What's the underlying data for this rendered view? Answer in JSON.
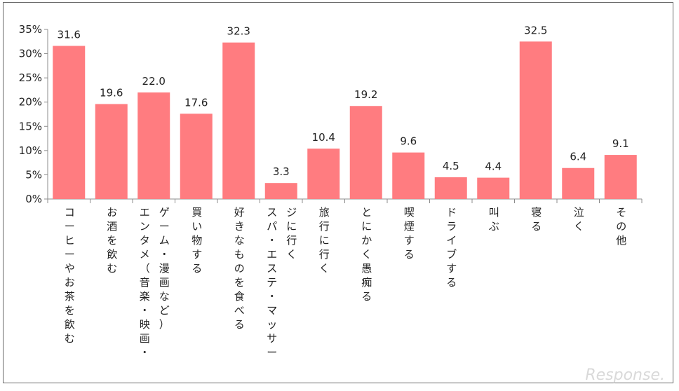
{
  "chart_data": {
    "type": "bar",
    "categories": [
      "コーヒーやお茶を飲む",
      "お酒を飲む",
      "エンタメ（音楽・映画・ゲーム・漫画など）",
      "買い物する",
      "好きなものを食べる",
      "スパ・エステ・マッサージに行く",
      "旅行に行く",
      "とにかく愚痴る",
      "喫煙する",
      "ドライブする",
      "叫ぶ",
      "寝る",
      "泣く",
      "その他"
    ],
    "category_lines": [
      [
        "コーヒーやお茶を飲む"
      ],
      [
        "お酒を飲む"
      ],
      [
        "エンタメ（音楽・映画・",
        "ゲーム・漫画など）"
      ],
      [
        "買い物する"
      ],
      [
        "好きなものを食べる"
      ],
      [
        "スパ・エステ・マッサー",
        "ジに行く"
      ],
      [
        "旅行に行く"
      ],
      [
        "とにかく愚痴る"
      ],
      [
        "喫煙する"
      ],
      [
        "ドライブする"
      ],
      [
        "叫ぶ"
      ],
      [
        "寝る"
      ],
      [
        "泣く"
      ],
      [
        "その他"
      ]
    ],
    "values": [
      31.6,
      19.6,
      22.0,
      17.6,
      32.3,
      3.3,
      10.4,
      19.2,
      9.6,
      4.5,
      4.4,
      32.5,
      6.4,
      9.1
    ],
    "value_labels": [
      "31.6",
      "19.6",
      "22.0",
      "17.6",
      "32.3",
      "3.3",
      "10.4",
      "19.2",
      "9.6",
      "4.5",
      "4.4",
      "32.5",
      "6.4",
      "9.1"
    ],
    "ylim": [
      0,
      35
    ],
    "y_ticks": [
      "0%",
      "5%",
      "10%",
      "15%",
      "20%",
      "25%",
      "30%",
      "35%"
    ],
    "title": "",
    "xlabel": "",
    "ylabel": "",
    "grid": false,
    "legend": "none",
    "bar_color": "#ff7c80"
  },
  "watermark": "Response."
}
